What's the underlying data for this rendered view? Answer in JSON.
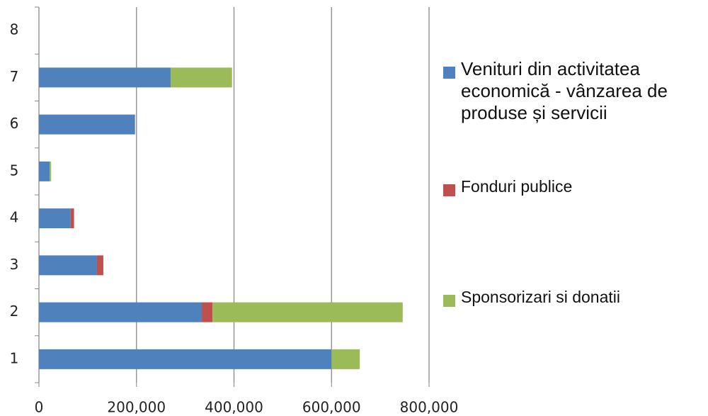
{
  "chart_data": {
    "type": "stacked-bar-horizontal",
    "categories": [
      "1",
      "2",
      "3",
      "4",
      "5",
      "6",
      "7",
      "8"
    ],
    "series": [
      {
        "name": "Venituri din activitatea economică - vânzarea de produse și servicii",
        "color": "#4f81bd",
        "values": [
          600000,
          334000,
          119000,
          65000,
          22000,
          197000,
          270000,
          0
        ]
      },
      {
        "name": "Fonduri publice",
        "color": "#c0504d",
        "values": [
          0,
          22000,
          13000,
          7000,
          0,
          0,
          0,
          0
        ]
      },
      {
        "name": "Sponsorizari si donatii",
        "color": "#9bbb59",
        "values": [
          58000,
          390000,
          0,
          0,
          3000,
          0,
          126000,
          0
        ]
      }
    ],
    "xlim": [
      0,
      800000
    ],
    "xticks": [
      0,
      {
        "value": 200000,
        "label": "200,000"
      },
      {
        "value": 400000,
        "label": "400,000"
      },
      {
        "value": 600000,
        "label": "600,000"
      },
      {
        "value": 800000,
        "label": "800,000"
      }
    ],
    "grid": true,
    "legend": "right"
  }
}
